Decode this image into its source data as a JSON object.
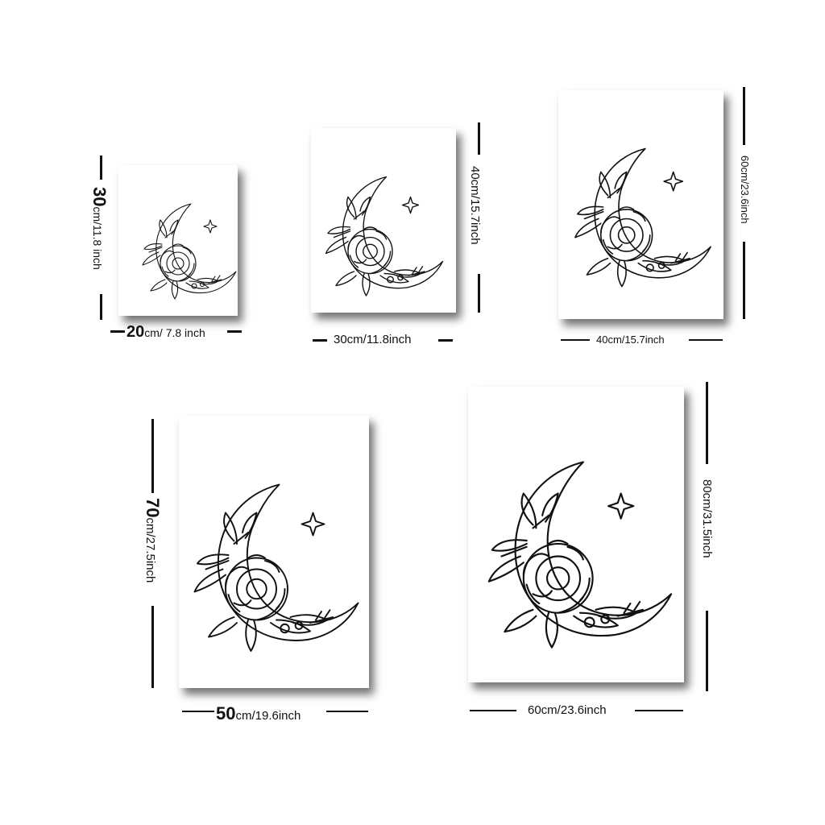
{
  "posters": [
    {
      "name": "poster-20x30",
      "width": {
        "big": "20",
        "rest": "cm/ 7.8 inch"
      },
      "height": {
        "big": "30",
        "rest": "cm/11.8 inch"
      }
    },
    {
      "name": "poster-30x40",
      "width": {
        "text": "30cm/11.8inch"
      },
      "height": {
        "text": "40cm/15.7inch"
      }
    },
    {
      "name": "poster-40x60",
      "width": {
        "text": "40cm/15.7inch"
      },
      "height": {
        "text": "60cm/23.6inch"
      }
    },
    {
      "name": "poster-50x70",
      "width": {
        "big": "50",
        "rest": "cm/19.6inch"
      },
      "height": {
        "big": "70",
        "rest": "cm/27.5inch"
      }
    },
    {
      "name": "poster-60x80",
      "width": {
        "text": "60cm/23.6inch"
      },
      "height": {
        "text": "80cm/31.5inch"
      }
    }
  ],
  "artwork": "crescent-moon-chrysanthemum-line-art"
}
